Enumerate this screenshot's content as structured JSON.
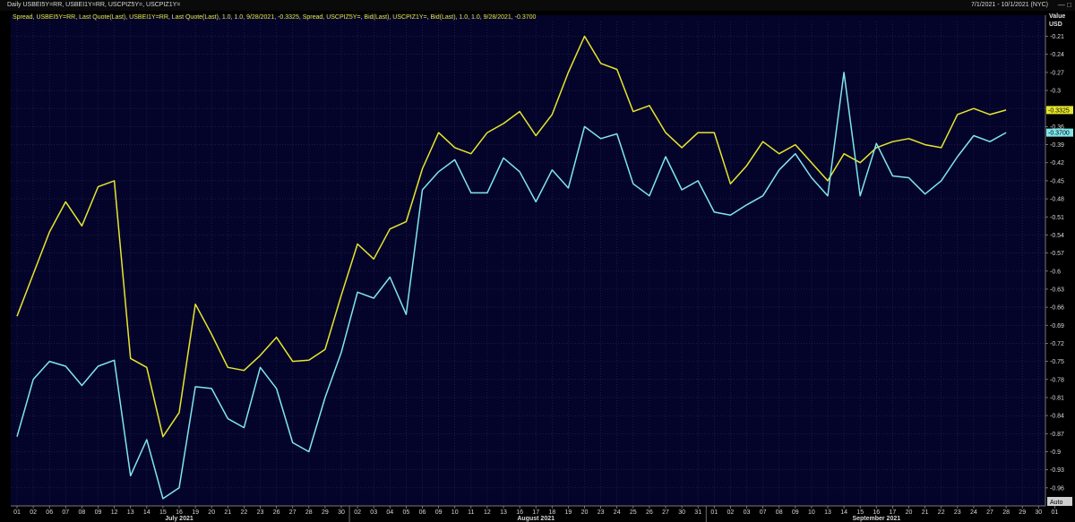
{
  "header": {
    "title": "Daily USBEI5Y=RR, USBEI1Y=RR, USCPIZ5Y=, USCPIZ1Y=",
    "date_range": "7/1/2021 - 10/1/2021 (NYC)"
  },
  "chart_data": {
    "type": "line",
    "legend_text": "Spread, USBEI5Y=RR, Last Quote(Last), USBEI1Y=RR, Last Quote(Last),  1.0, 1.0, 9/28/2021, -0.3325, Spread, USCPIZ5Y=, Bid(Last), USCPIZ1Y=, Bid(Last),  1.0, 1.0, 9/28/2021, -0.3700",
    "ylabel": "Value",
    "yunit": "USD",
    "auto_label": "Auto",
    "ylim": [
      -0.99,
      -0.175
    ],
    "y_ticks": [
      -0.21,
      -0.24,
      -0.27,
      -0.3,
      -0.33,
      -0.36,
      -0.39,
      -0.42,
      -0.45,
      -0.48,
      -0.51,
      -0.54,
      -0.57,
      -0.6,
      -0.63,
      -0.66,
      -0.69,
      -0.72,
      -0.75,
      -0.78,
      -0.81,
      -0.84,
      -0.87,
      -0.9,
      -0.93,
      -0.96
    ],
    "y_tick_labels": [
      "-0.21",
      "-0.24",
      "-0.27",
      "-0.3",
      "-0.33",
      "-0.36",
      "-0.39",
      "-0.42",
      "-0.45",
      "-0.48",
      "-0.51",
      "-0.54",
      "-0.57",
      "-0.6",
      "-0.63",
      "-0.66",
      "-0.69",
      "-0.72",
      "-0.75",
      "-0.78",
      "-0.81",
      "-0.84",
      "-0.87",
      "-0.9",
      "-0.93",
      "-0.96"
    ],
    "x_tick_labels": [
      "01",
      "02",
      "06",
      "07",
      "08",
      "09",
      "12",
      "13",
      "14",
      "15",
      "16",
      "19",
      "20",
      "21",
      "22",
      "23",
      "26",
      "27",
      "28",
      "29",
      "30",
      "02",
      "03",
      "04",
      "05",
      "06",
      "09",
      "10",
      "11",
      "12",
      "13",
      "16",
      "17",
      "18",
      "19",
      "20",
      "23",
      "24",
      "25",
      "26",
      "27",
      "30",
      "31",
      "01",
      "02",
      "03",
      "07",
      "08",
      "09",
      "10",
      "13",
      "14",
      "15",
      "16",
      "17",
      "20",
      "21",
      "22",
      "23",
      "24",
      "27",
      "28",
      "29",
      "30",
      "01"
    ],
    "months": [
      {
        "label": "July 2021",
        "at_index": 10
      },
      {
        "label": "August 2021",
        "at_index": 32
      },
      {
        "label": "September 2021",
        "at_index": 53
      }
    ],
    "month_separators": [
      21,
      43,
      64
    ],
    "grid": true,
    "series": [
      {
        "color": "#e6e62e",
        "last_label": "-0.3325",
        "values": [
          -0.675,
          -0.605,
          -0.535,
          -0.485,
          -0.525,
          -0.46,
          -0.45,
          -0.745,
          -0.76,
          -0.875,
          -0.835,
          -0.655,
          -0.705,
          -0.76,
          -0.765,
          -0.74,
          -0.71,
          -0.75,
          -0.748,
          -0.73,
          -0.64,
          -0.555,
          -0.58,
          -0.53,
          -0.518,
          -0.43,
          -0.37,
          -0.395,
          -0.405,
          -0.37,
          -0.355,
          -0.335,
          -0.375,
          -0.34,
          -0.27,
          -0.21,
          -0.255,
          -0.265,
          -0.335,
          -0.325,
          -0.37,
          -0.395,
          -0.37,
          -0.37,
          -0.455,
          -0.425,
          -0.385,
          -0.405,
          -0.39,
          -0.42,
          -0.45,
          -0.405,
          -0.42,
          -0.395,
          -0.385,
          -0.38,
          -0.39,
          -0.395,
          -0.34,
          -0.33,
          -0.34,
          -0.3325
        ]
      },
      {
        "color": "#7fe6ec",
        "last_label": "-0.3700",
        "values": [
          -0.875,
          -0.78,
          -0.75,
          -0.758,
          -0.79,
          -0.758,
          -0.748,
          -0.94,
          -0.88,
          -0.978,
          -0.96,
          -0.792,
          -0.795,
          -0.845,
          -0.86,
          -0.76,
          -0.795,
          -0.885,
          -0.9,
          -0.81,
          -0.735,
          -0.635,
          -0.645,
          -0.61,
          -0.672,
          -0.465,
          -0.435,
          -0.415,
          -0.47,
          -0.47,
          -0.412,
          -0.435,
          -0.485,
          -0.432,
          -0.462,
          -0.36,
          -0.38,
          -0.372,
          -0.455,
          -0.475,
          -0.41,
          -0.465,
          -0.45,
          -0.502,
          -0.507,
          -0.49,
          -0.475,
          -0.432,
          -0.405,
          -0.445,
          -0.475,
          -0.27,
          -0.475,
          -0.388,
          -0.442,
          -0.445,
          -0.472,
          -0.45,
          -0.41,
          -0.375,
          -0.385,
          -0.37
        ]
      }
    ]
  }
}
